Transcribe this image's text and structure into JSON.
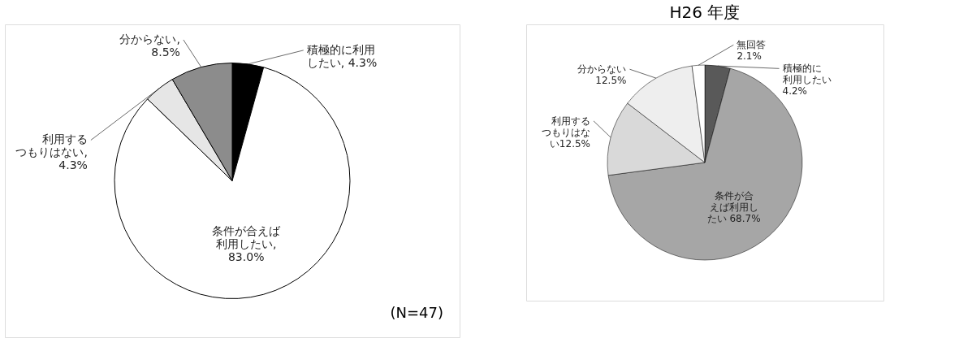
{
  "chart_data": [
    {
      "type": "pie",
      "categories": [
        "積極的に利用したい, 4.3%",
        "条件が合えば利用したい, 83.0%",
        "利用するつもりはない, 4.3%",
        "分からない, 8.5%"
      ],
      "values": [
        4.3,
        83.0,
        4.3,
        8.5
      ],
      "colors": [
        "#000000",
        "#ffffff",
        "#e6e6e6",
        "#8c8c8c"
      ],
      "annotations": [
        "(N=47)"
      ]
    },
    {
      "type": "pie",
      "title": "H26 年度",
      "categories": [
        "積極的に利用したい 4.2%",
        "条件が合えば利用したい 68.7%",
        "利用するつもりはない12.5%",
        "分からない 12.5%",
        "無回答 2.1%"
      ],
      "values": [
        4.2,
        68.7,
        12.5,
        12.5,
        2.1
      ],
      "colors": [
        "#595959",
        "#a6a6a6",
        "#d9d9d9",
        "#eeeeee",
        "#ffffff"
      ]
    }
  ]
}
